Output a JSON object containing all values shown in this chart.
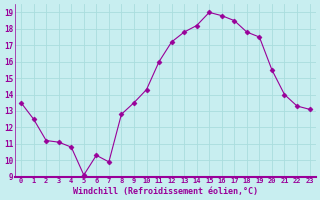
{
  "x": [
    0,
    1,
    2,
    3,
    4,
    5,
    6,
    7,
    8,
    9,
    10,
    11,
    12,
    13,
    14,
    15,
    16,
    17,
    18,
    19,
    20,
    21,
    22,
    23
  ],
  "y": [
    13.5,
    12.5,
    11.2,
    11.1,
    10.8,
    9.1,
    10.3,
    9.9,
    12.8,
    13.5,
    14.3,
    16.0,
    17.2,
    17.8,
    18.2,
    19.0,
    18.8,
    18.5,
    17.8,
    17.5,
    15.5,
    14.0,
    13.3,
    13.1
  ],
  "line_color": "#990099",
  "marker": "D",
  "marker_size": 2.5,
  "bg_color": "#c8eef0",
  "grid_color": "#aadddd",
  "xlabel": "Windchill (Refroidissement éolien,°C)",
  "xlabel_color": "#990099",
  "tick_color": "#990099",
  "axis_border_color": "#990099",
  "ylim": [
    9,
    19.5
  ],
  "xlim": [
    -0.5,
    23.5
  ],
  "yticks": [
    9,
    10,
    11,
    12,
    13,
    14,
    15,
    16,
    17,
    18,
    19
  ],
  "xticks": [
    0,
    1,
    2,
    3,
    4,
    5,
    6,
    7,
    8,
    9,
    10,
    11,
    12,
    13,
    14,
    15,
    16,
    17,
    18,
    19,
    20,
    21,
    22,
    23
  ],
  "xtick_labels": [
    "0",
    "1",
    "2",
    "3",
    "4",
    "5",
    "6",
    "7",
    "8",
    "9",
    "10",
    "11",
    "12",
    "13",
    "14",
    "15",
    "16",
    "17",
    "18",
    "19",
    "20",
    "21",
    "22",
    "23"
  ]
}
